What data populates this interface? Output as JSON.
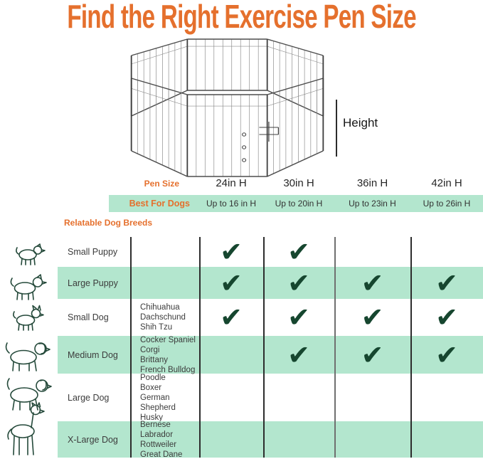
{
  "title": "Find the Right Exercise Pen Size",
  "illustration": {
    "height_label": "Height"
  },
  "spec_table": {
    "pen_size_label": "Pen Size",
    "best_for_label": "Best For Dogs",
    "columns": [
      {
        "size": "24in H",
        "best_for": "Up to 16 in H"
      },
      {
        "size": "30in H",
        "best_for": "Up to 20in H"
      },
      {
        "size": "36in H",
        "best_for": "Up to 23in H"
      },
      {
        "size": "42in H",
        "best_for": "Up to 26in H"
      }
    ]
  },
  "breeds_section": {
    "heading": "Relatable Dog Breeds",
    "check_glyph": "✔",
    "rows": [
      {
        "label": "Small Puppy",
        "icon": "small-puppy-icon",
        "breeds": "",
        "checks": [
          "✔",
          "✔",
          "",
          ""
        ]
      },
      {
        "label": "Large Puppy",
        "icon": "large-puppy-icon",
        "breeds": "",
        "checks": [
          "✔",
          "✔",
          "✔",
          "✔"
        ]
      },
      {
        "label": "Small Dog",
        "icon": "small-dog-icon",
        "breeds": "Chihuahua\nDachschund\nShih Tzu",
        "checks": [
          "✔",
          "✔",
          "✔",
          "✔"
        ]
      },
      {
        "label": "Medium Dog",
        "icon": "medium-dog-icon",
        "breeds": "Cocker Spaniel\nCorgi\nBrittany\nFrench Bulldog",
        "checks": [
          "",
          "✔",
          "✔",
          "✔"
        ]
      },
      {
        "label": "Large Dog",
        "icon": "large-dog-icon",
        "breeds": "Poodle\nBoxer\nGerman\nShepherd\nHusky",
        "checks": [
          "",
          "",
          "",
          ""
        ]
      },
      {
        "label": "X-Large Dog",
        "icon": "x-large-dog-icon",
        "breeds": "Bernese\nLabrador\nRottweiler\nGreat Dane",
        "checks": [
          "",
          "",
          "",
          ""
        ]
      }
    ]
  },
  "colors": {
    "accent_orange": "#E5702D",
    "band_green": "#B3E6CE",
    "check_green": "#16462F",
    "icon_green": "#24493A",
    "grid_line": "#2D2D2D"
  }
}
